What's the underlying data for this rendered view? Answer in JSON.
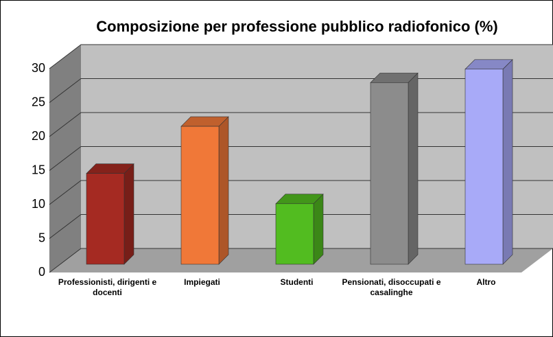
{
  "chart_data": {
    "type": "bar3d",
    "title": "Composizione per professione pubblico radiofonico (%)",
    "categories": [
      "Professionisti, dirigenti e docenti",
      "Impiegati",
      "Studenti",
      "Pensionati, disoccupati e casalinghe",
      "Altro"
    ],
    "values": [
      13.5,
      20.5,
      9,
      27,
      29
    ],
    "colors": [
      "#a52a22",
      "#f07838",
      "#52bc20",
      "#8c8c8c",
      "#a8aaf8"
    ],
    "ylim": [
      0,
      30
    ],
    "yticks": [
      0,
      5,
      10,
      15,
      20,
      25,
      30
    ],
    "grid": true
  }
}
